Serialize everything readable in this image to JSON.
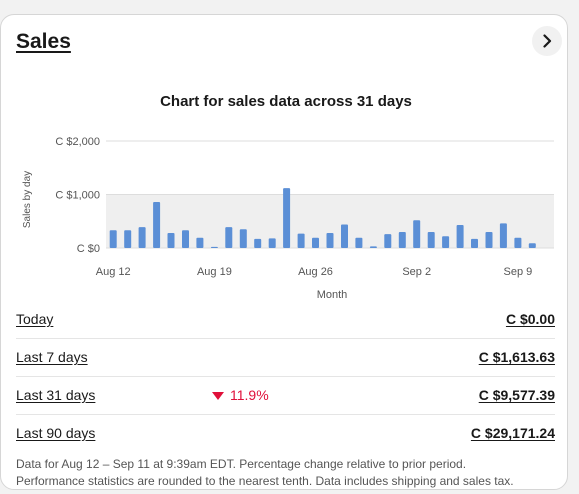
{
  "card": {
    "title": "Sales"
  },
  "chart_data": {
    "type": "bar",
    "title": "Chart for sales data across 31 days",
    "xlabel": "Month",
    "ylabel": "Sales by day",
    "ytick_labels": [
      "C $0",
      "C $1,000",
      "C $2,000"
    ],
    "yticks": [
      0,
      1000,
      2000
    ],
    "ylim": [
      0,
      2000
    ],
    "xtick_labels": [
      "Aug 12",
      "Aug 19",
      "Aug 26",
      "Sep 2",
      "Sep 9"
    ],
    "xtick_indices": [
      0,
      7,
      14,
      21,
      28
    ],
    "categories": [
      "Aug 12",
      "Aug 13",
      "Aug 14",
      "Aug 15",
      "Aug 16",
      "Aug 17",
      "Aug 18",
      "Aug 19",
      "Aug 20",
      "Aug 21",
      "Aug 22",
      "Aug 23",
      "Aug 24",
      "Aug 25",
      "Aug 26",
      "Aug 27",
      "Aug 28",
      "Aug 29",
      "Aug 30",
      "Aug 31",
      "Sep 1",
      "Sep 2",
      "Sep 3",
      "Sep 4",
      "Sep 5",
      "Sep 6",
      "Sep 7",
      "Sep 8",
      "Sep 9",
      "Sep 10",
      "Sep 11"
    ],
    "values": [
      330,
      330,
      390,
      860,
      280,
      330,
      190,
      20,
      390,
      350,
      170,
      180,
      1120,
      270,
      190,
      280,
      440,
      190,
      30,
      260,
      300,
      520,
      300,
      220,
      430,
      170,
      300,
      460,
      190,
      90,
      0
    ],
    "bar_color": "#5b8fd6",
    "band_color": "#efefef",
    "grid": true
  },
  "summary": {
    "rows": [
      {
        "label": "Today",
        "value": "C $0.00",
        "change": ""
      },
      {
        "label": "Last 7 days",
        "value": "C $1,613.63",
        "change": ""
      },
      {
        "label": "Last 31 days",
        "value": "C $9,577.39",
        "change": "11.9%",
        "change_direction": "down"
      },
      {
        "label": "Last 90 days",
        "value": "C $29,171.24",
        "change": ""
      }
    ]
  },
  "footnote": {
    "line1": "Data for Aug 12 – Sep 11 at 9:39am EDT. Percentage change relative to prior period.",
    "line2": "Performance statistics are rounded to the nearest tenth. Data includes shipping and sales tax."
  },
  "icons": {
    "more": "chevron-right-icon",
    "change": "triangle-down-icon"
  },
  "colors": {
    "change_down": "#e0103a"
  }
}
